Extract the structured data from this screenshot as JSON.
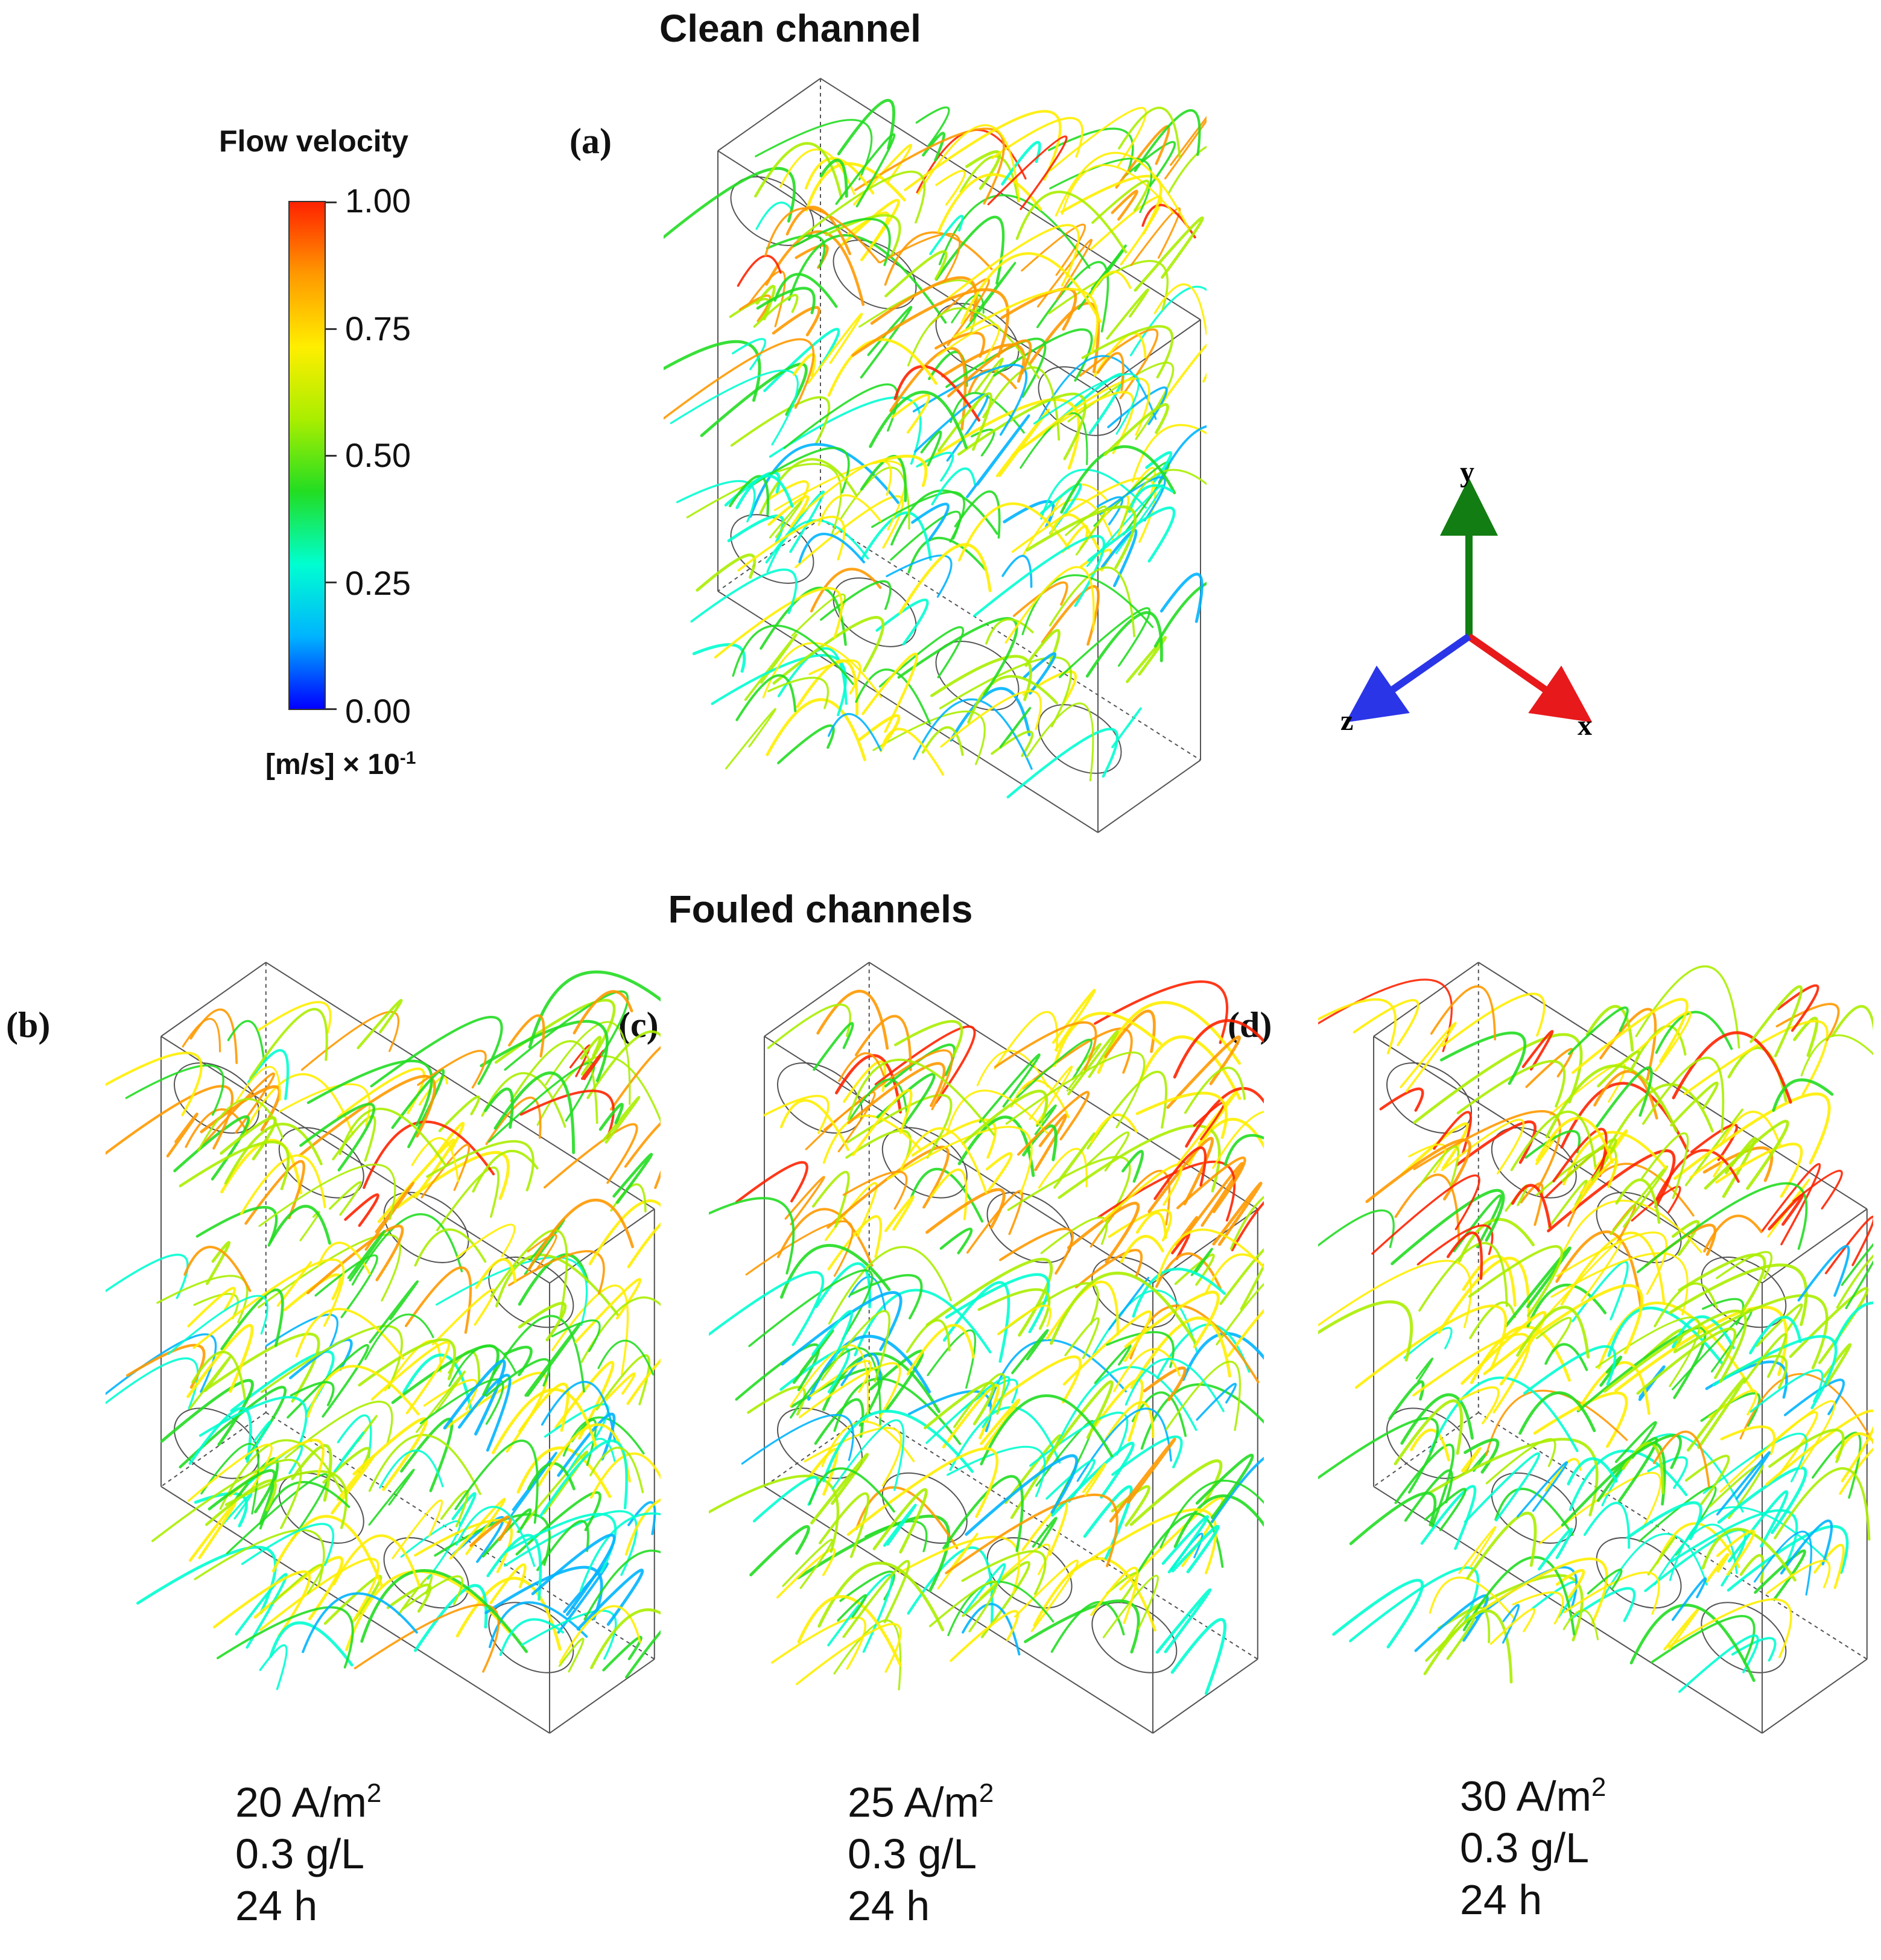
{
  "titles": {
    "clean": "Clean channel",
    "fouled": "Fouled channels"
  },
  "legend": {
    "title": "Flow velocity",
    "ticks": [
      "1.00",
      "0.75",
      "0.50",
      "0.25",
      "0.00"
    ],
    "unit_main": "[m/s] × 10",
    "unit_exp": "-1",
    "colormap": [
      "#0000ff",
      "#00b4ff",
      "#00ffd0",
      "#22dd22",
      "#aaee00",
      "#ffee00",
      "#ff9900",
      "#ff2200"
    ]
  },
  "axes": {
    "x": "x",
    "y": "y",
    "z": "z",
    "colors": {
      "x": "#e8191b",
      "y": "#127d12",
      "z": "#2a35e8"
    }
  },
  "panels": [
    {
      "label": "(a)",
      "current": "",
      "conc": "",
      "time": ""
    },
    {
      "label": "(b)",
      "current": "20 A/m",
      "current_exp": "2",
      "conc": "0.3 g/L",
      "time": "24 h"
    },
    {
      "label": "(c)",
      "current": "25 A/m",
      "current_exp": "2",
      "conc": "0.3 g/L",
      "time": "24 h"
    },
    {
      "label": "(d)",
      "current": "30 A/m",
      "current_exp": "2",
      "conc": "0.3 g/L",
      "time": "24 h"
    }
  ]
}
